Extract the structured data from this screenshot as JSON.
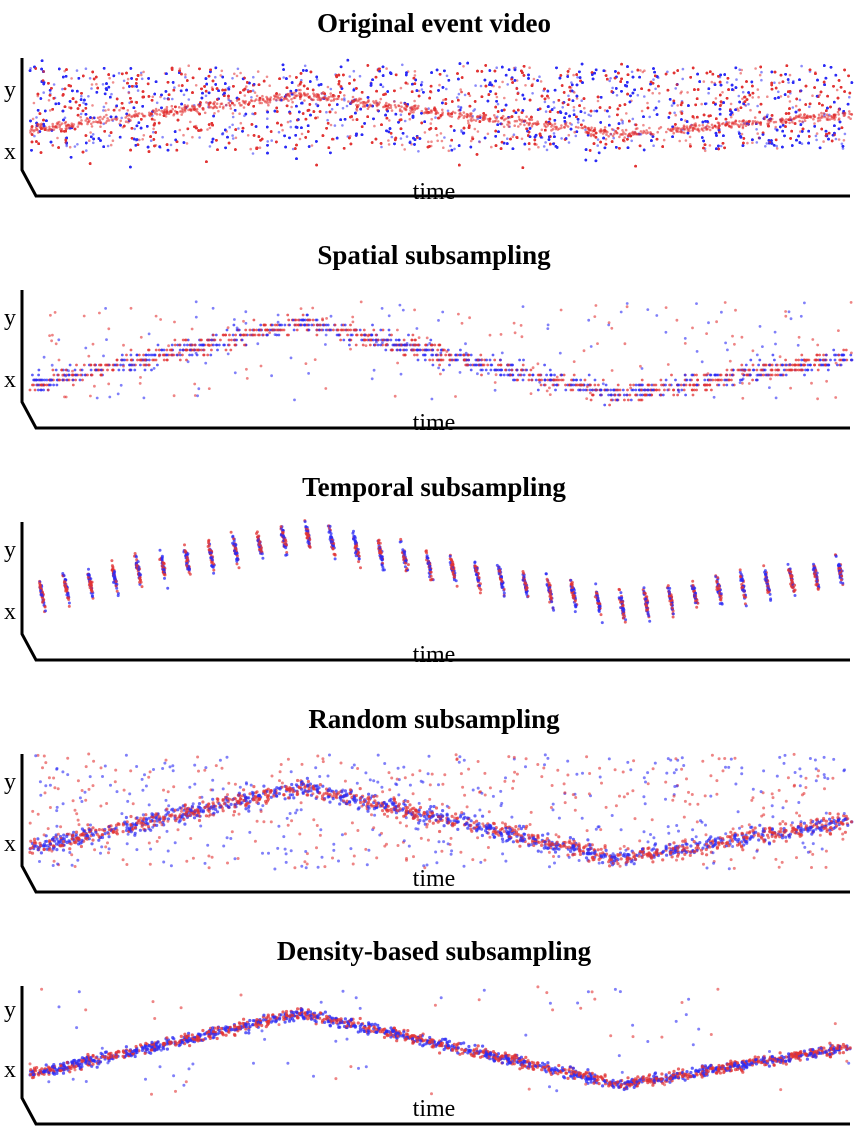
{
  "colors": {
    "positive": "#e23333",
    "negative": "#2b2bf5",
    "axis": "#000000"
  },
  "chart_data": [
    {
      "type": "scatter",
      "title": "Original event video",
      "xlabel": "time",
      "ylabel": "y",
      "zlabel": "x",
      "series": [],
      "density": "very high"
    },
    {
      "type": "scatter",
      "title": "Spatial subsampling",
      "xlabel": "time",
      "ylabel": "y",
      "zlabel": "x",
      "series": [],
      "density": "low, grid-aligned rows"
    },
    {
      "type": "scatter",
      "title": "Temporal subsampling",
      "xlabel": "time",
      "ylabel": "y",
      "zlabel": "x",
      "series": [],
      "density": "vertical time slices"
    },
    {
      "type": "scatter",
      "title": "Random subsampling",
      "xlabel": "time",
      "ylabel": "y",
      "zlabel": "x",
      "series": [],
      "density": "medium, scattered noise"
    },
    {
      "type": "scatter",
      "title": "Density-based subsampling",
      "xlabel": "time",
      "ylabel": "y",
      "zlabel": "x",
      "series": [],
      "density": "medium, concentrated on trajectory"
    }
  ]
}
